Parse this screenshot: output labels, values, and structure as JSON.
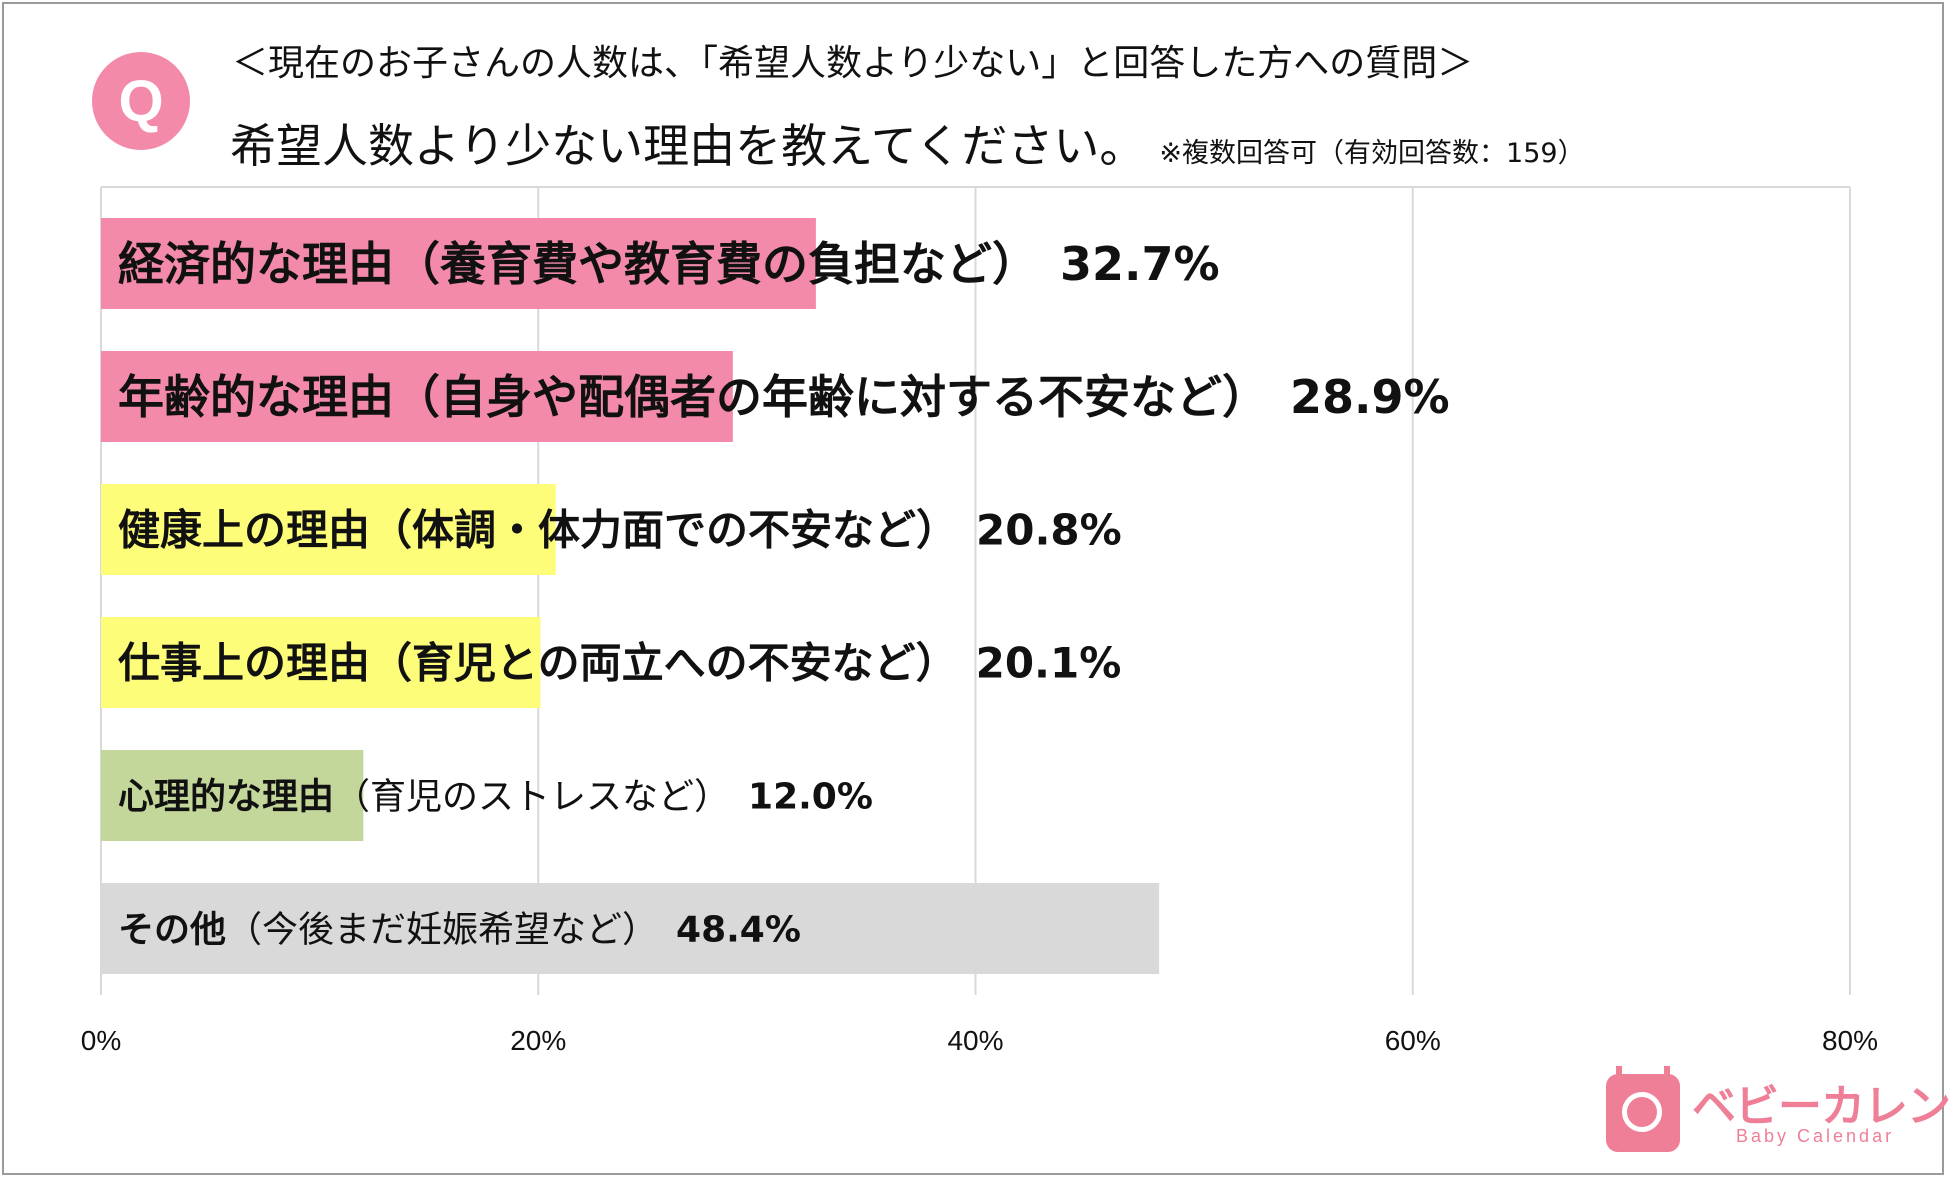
{
  "header": {
    "badge": "Q",
    "subheading": "＜現在のお子さんの人数は、「希望人数より少ない」と回答した方への質問＞",
    "question": "希望人数より少ない理由を教えてください。",
    "note": "※複数回答可（有効回答数：159）"
  },
  "chart_data": {
    "type": "bar",
    "orientation": "horizontal",
    "categories": [
      {
        "bold": "経済的な理由",
        "rest": "（養育費や教育費の負担など）",
        "full_bold": true
      },
      {
        "bold": "年齢的な理由",
        "rest": "（自身や配偶者の年齢に対する不安など）",
        "full_bold": true
      },
      {
        "bold": "健康上の理由",
        "rest": "（体調・体力面での不安など）",
        "full_bold": true
      },
      {
        "bold": "仕事上の理由",
        "rest": "（育児との両立への不安など）",
        "full_bold": true
      },
      {
        "bold": "心理的な理由",
        "rest": "（育児のストレスなど）",
        "full_bold": false
      },
      {
        "bold": "その他",
        "rest": "（今後まだ妊娠希望など）",
        "full_bold": false
      }
    ],
    "values": [
      32.7,
      28.9,
      20.8,
      20.1,
      12.0,
      48.4
    ],
    "value_labels": [
      "32.7%",
      "28.9%",
      "20.8%",
      "20.1%",
      "12.0%",
      "48.4%"
    ],
    "colors": [
      "#f48aaa",
      "#f48aaa",
      "#fdfd7a",
      "#fdfd7a",
      "#c4d79b",
      "#d9d9d9"
    ],
    "xlim": [
      0,
      80
    ],
    "xticks": [
      "0%",
      "20%",
      "40%",
      "60%",
      "80%"
    ],
    "grid": true
  },
  "logo": {
    "text": "ベビーカレンダー",
    "sub": "Baby Calendar"
  }
}
